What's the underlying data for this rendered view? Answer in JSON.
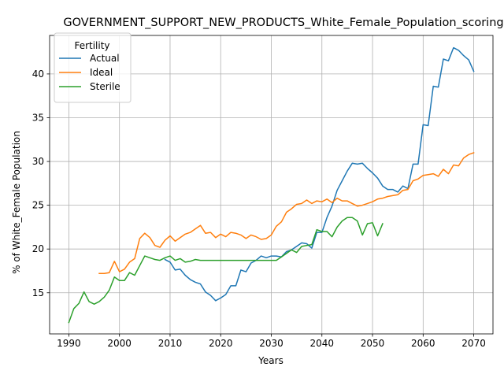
{
  "chart_data": {
    "type": "line",
    "title": "GOVERNMENT_SUPPORT_NEW_PRODUCTS_White_Female_Population_scoring",
    "xlabel": "Years",
    "ylabel": "% of White_Female Population",
    "xlim": [
      1986.2,
      2073.8
    ],
    "ylim": [
      10.3,
      44.4
    ],
    "xticks": [
      1990,
      2000,
      2010,
      2020,
      2030,
      2040,
      2050,
      2060,
      2070
    ],
    "yticks": [
      15,
      20,
      25,
      30,
      35,
      40
    ],
    "grid": true,
    "legend": {
      "title": "Fertility",
      "placement": "upper-left"
    },
    "series": [
      {
        "name": "Actual",
        "color": "#1f77b4",
        "x": [
          2009,
          2010,
          2011,
          2012,
          2013,
          2014,
          2015,
          2016,
          2017,
          2018,
          2019,
          2020,
          2021,
          2022,
          2023,
          2024,
          2025,
          2026,
          2027,
          2028,
          2029,
          2030,
          2031,
          2032,
          2033,
          2034,
          2035,
          2036,
          2037,
          2038,
          2039,
          2040,
          2041,
          2042,
          2043,
          2044,
          2045,
          2046,
          2047,
          2048,
          2049,
          2050,
          2051,
          2052,
          2053,
          2054,
          2055,
          2056,
          2057,
          2058,
          2059,
          2060,
          2061,
          2062,
          2063,
          2064,
          2065,
          2066,
          2067,
          2068,
          2069,
          2070
        ],
        "y": [
          18.8,
          18.5,
          17.6,
          17.7,
          17.0,
          16.5,
          16.2,
          16.0,
          15.1,
          14.7,
          14.1,
          14.4,
          14.8,
          15.8,
          15.8,
          17.6,
          17.4,
          18.4,
          18.7,
          19.2,
          19.0,
          19.2,
          19.2,
          19.1,
          19.7,
          19.9,
          20.3,
          20.7,
          20.6,
          20.1,
          21.9,
          21.9,
          23.6,
          24.9,
          26.7,
          27.8,
          28.9,
          29.8,
          29.7,
          29.8,
          29.2,
          28.7,
          28.1,
          27.2,
          26.8,
          26.8,
          26.5,
          27.2,
          26.9,
          29.7,
          29.7,
          34.2,
          34.1,
          38.6,
          38.5,
          41.7,
          41.5,
          43.0,
          42.7,
          42.1,
          41.6,
          40.3
        ]
      },
      {
        "name": "Ideal",
        "color": "#ff7f0e",
        "x": [
          1996,
          1997,
          1998,
          1999,
          2000,
          2001,
          2002,
          2003,
          2004,
          2005,
          2006,
          2007,
          2008,
          2009,
          2010,
          2011,
          2012,
          2013,
          2014,
          2015,
          2016,
          2017,
          2018,
          2019,
          2020,
          2021,
          2022,
          2023,
          2024,
          2025,
          2026,
          2027,
          2028,
          2029,
          2030,
          2031,
          2032,
          2033,
          2034,
          2035,
          2036,
          2037,
          2038,
          2039,
          2040,
          2041,
          2042,
          2043,
          2044,
          2045,
          2046,
          2047,
          2048,
          2049,
          2050,
          2051,
          2052,
          2053,
          2054,
          2055,
          2056,
          2057,
          2058,
          2059,
          2060,
          2061,
          2062,
          2063,
          2064,
          2065,
          2066,
          2067,
          2068,
          2069,
          2070
        ],
        "y": [
          17.2,
          17.2,
          17.3,
          18.6,
          17.4,
          17.7,
          18.5,
          18.9,
          21.2,
          21.8,
          21.3,
          20.4,
          20.2,
          21.0,
          21.5,
          20.9,
          21.3,
          21.7,
          21.9,
          22.3,
          22.7,
          21.8,
          21.9,
          21.3,
          21.7,
          21.4,
          21.9,
          21.8,
          21.6,
          21.2,
          21.6,
          21.4,
          21.1,
          21.2,
          21.6,
          22.6,
          23.1,
          24.2,
          24.6,
          25.1,
          25.2,
          25.6,
          25.2,
          25.5,
          25.4,
          25.7,
          25.3,
          25.8,
          25.5,
          25.5,
          25.2,
          24.9,
          25.0,
          25.2,
          25.4,
          25.7,
          25.8,
          26.0,
          26.1,
          26.2,
          26.7,
          26.8,
          27.8,
          28.0,
          28.4,
          28.5,
          28.6,
          28.3,
          29.1,
          28.6,
          29.6,
          29.5,
          30.4,
          30.8,
          31.0
        ]
      },
      {
        "name": "Sterile",
        "color": "#2ca02c",
        "x": [
          1990,
          1991,
          1992,
          1993,
          1994,
          1995,
          1996,
          1997,
          1998,
          1999,
          2000,
          2001,
          2002,
          2003,
          2004,
          2005,
          2006,
          2007,
          2008,
          2009,
          2010,
          2011,
          2012,
          2013,
          2014,
          2015,
          2016,
          2017,
          2018,
          2019,
          2020,
          2021,
          2022,
          2023,
          2024,
          2025,
          2026,
          2027,
          2028,
          2029,
          2030,
          2031,
          2032,
          2033,
          2034,
          2035,
          2036,
          2037,
          2038,
          2039,
          2040,
          2041,
          2042,
          2043,
          2044,
          2045,
          2046,
          2047,
          2048,
          2049,
          2050,
          2051,
          2052
        ],
        "y": [
          11.6,
          13.2,
          13.8,
          15.1,
          14.0,
          13.7,
          14.0,
          14.5,
          15.3,
          16.8,
          16.4,
          16.4,
          17.3,
          17.0,
          18.1,
          19.2,
          19.0,
          18.8,
          18.7,
          19.0,
          19.2,
          18.7,
          18.9,
          18.5,
          18.6,
          18.8,
          18.7,
          18.7,
          18.7,
          18.7,
          18.7,
          18.7,
          18.7,
          18.7,
          18.7,
          18.7,
          18.7,
          18.7,
          18.7,
          18.7,
          18.7,
          18.7,
          19.1,
          19.5,
          19.9,
          19.6,
          20.3,
          20.4,
          20.5,
          22.2,
          22.0,
          22.0,
          21.4,
          22.5,
          23.2,
          23.6,
          23.6,
          23.2,
          21.6,
          22.9,
          23.0,
          21.5,
          22.9
        ]
      }
    ]
  }
}
